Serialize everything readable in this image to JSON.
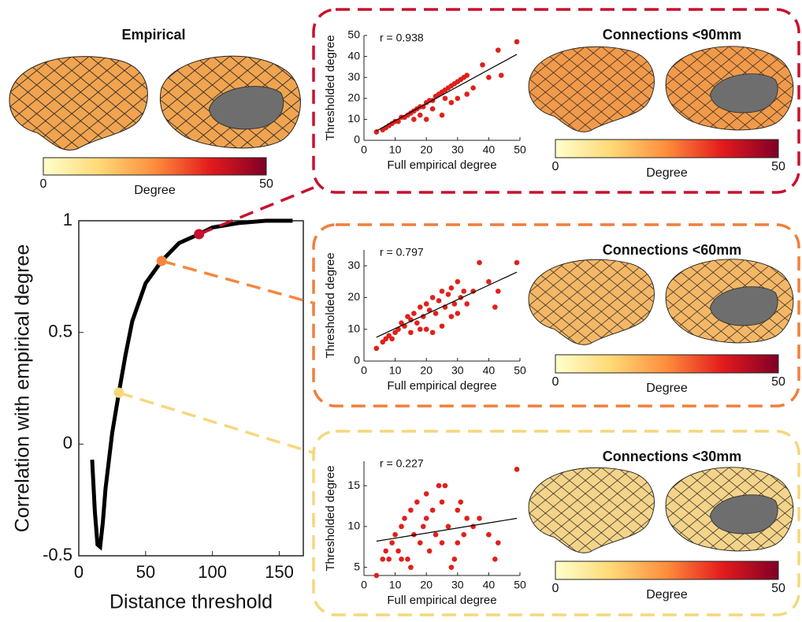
{
  "empirical": {
    "title": "Empirical",
    "colorbar": {
      "label": "Degree",
      "lim": [
        0,
        50
      ],
      "ticks": [
        0,
        50
      ]
    }
  },
  "chart_data": [
    {
      "type": "line",
      "x_label": "Distance threshold",
      "y_label": "Correlation with empirical degree",
      "xlim": [
        0,
        168
      ],
      "xticks": [
        0,
        50,
        100,
        150
      ],
      "ylim": [
        -0.5,
        1
      ],
      "yticks": [
        -0.5,
        0,
        0.5,
        1
      ],
      "series": [
        {
          "color": "#000000",
          "x": [
            10,
            12,
            14,
            16,
            18,
            20,
            25,
            30,
            35,
            40,
            50,
            62,
            75,
            90,
            100,
            120,
            140,
            160
          ],
          "values": [
            -0.07,
            -0.3,
            -0.45,
            -0.46,
            -0.35,
            -0.2,
            0.05,
            0.23,
            0.4,
            0.55,
            0.72,
            0.82,
            0.9,
            0.94,
            0.97,
            0.99,
            1.0,
            1.0
          ]
        }
      ],
      "highlights": {
        "x": [
          90,
          62,
          30
        ],
        "values": [
          0.94,
          0.82,
          0.23
        ],
        "colors": [
          "#c8102e",
          "#f4873f",
          "#f6d77c"
        ]
      }
    },
    {
      "type": "scatter",
      "title": "Connections <90mm",
      "annotation": "r = 0.938",
      "x_label": "Full empirical degree",
      "y_label": "Thresholded degree",
      "xlim": [
        0,
        50
      ],
      "xticks": [
        0,
        10,
        20,
        30,
        40,
        50
      ],
      "ylim": [
        0,
        50
      ],
      "yticks": [
        0,
        10,
        20,
        30,
        40,
        50
      ],
      "points": {
        "color": "#e0201b",
        "x": [
          4,
          6,
          7,
          8,
          9,
          10,
          11,
          12,
          13,
          14,
          15,
          16,
          17,
          18,
          19,
          20,
          21,
          22,
          23,
          24,
          25,
          26,
          27,
          28,
          29,
          30,
          31,
          32,
          33,
          22,
          25,
          28,
          30,
          33,
          35,
          38,
          40,
          43,
          44,
          49,
          20,
          26,
          16,
          18
        ],
        "values": [
          4,
          5,
          6,
          7,
          8,
          9,
          9,
          11,
          11,
          12,
          13,
          14,
          15,
          16,
          16,
          18,
          19,
          19,
          21,
          22,
          23,
          24,
          25,
          26,
          27,
          28,
          29,
          30,
          31,
          15,
          12,
          18,
          20,
          22,
          25,
          36,
          30,
          43,
          31,
          47,
          10,
          20,
          10,
          12
        ]
      },
      "fit": {
        "color": "#000000",
        "x": [
          4,
          49
        ],
        "values": [
          4.5,
          41
        ]
      },
      "colorbar": {
        "label": "Degree",
        "lim": [
          0,
          50
        ],
        "ticks": [
          0,
          50
        ]
      }
    },
    {
      "type": "scatter",
      "title": "Connections <60mm",
      "annotation": "r = 0.797",
      "x_label": "Full empirical degree",
      "y_label": "Thresholded degree",
      "xlim": [
        0,
        50
      ],
      "xticks": [
        0,
        10,
        20,
        30,
        40,
        50
      ],
      "ylim": [
        0,
        35
      ],
      "yticks": [
        0,
        10,
        20,
        30
      ],
      "points": {
        "color": "#e0201b",
        "x": [
          4,
          6,
          7,
          8,
          9,
          10,
          11,
          12,
          13,
          14,
          15,
          16,
          17,
          18,
          19,
          20,
          21,
          22,
          23,
          24,
          25,
          26,
          27,
          28,
          29,
          30,
          31,
          32,
          33,
          35,
          37,
          40,
          42,
          43,
          49,
          20,
          25,
          22,
          18,
          15,
          30,
          28
        ],
        "values": [
          4,
          6,
          7,
          8,
          7,
          9,
          10,
          12,
          11,
          14,
          13,
          15,
          12,
          17,
          14,
          18,
          16,
          20,
          15,
          19,
          22,
          17,
          21,
          23,
          18,
          25,
          20,
          22,
          18,
          22,
          31,
          25,
          17,
          22,
          31,
          10,
          11,
          9,
          10,
          9,
          15,
          14
        ]
      },
      "fit": {
        "color": "#000000",
        "x": [
          4,
          49
        ],
        "values": [
          7.5,
          28
        ]
      },
      "colorbar": {
        "label": "Degree",
        "lim": [
          0,
          50
        ],
        "ticks": [
          0,
          50
        ]
      }
    },
    {
      "type": "scatter",
      "title": "Connections <30mm",
      "annotation": "r = 0.227",
      "x_label": "Full empirical degree",
      "y_label": "Thresholded degree",
      "xlim": [
        0,
        50
      ],
      "xticks": [
        0,
        10,
        20,
        30,
        40,
        50
      ],
      "ylim": [
        4,
        18
      ],
      "yticks": [
        5,
        10,
        15
      ],
      "points": {
        "color": "#e0201b",
        "x": [
          4,
          6,
          7,
          8,
          9,
          10,
          11,
          12,
          13,
          14,
          15,
          16,
          17,
          18,
          19,
          20,
          21,
          22,
          23,
          24,
          25,
          26,
          27,
          28,
          29,
          30,
          31,
          32,
          33,
          35,
          37,
          40,
          42,
          43,
          49,
          20,
          15,
          25,
          30,
          12
        ],
        "values": [
          4,
          6,
          7,
          6,
          8,
          9,
          7,
          10,
          11,
          6,
          12,
          9,
          13,
          8,
          10,
          11,
          7,
          12,
          9,
          15,
          8,
          15,
          10,
          5,
          6,
          12,
          13,
          9,
          11,
          10,
          11,
          9,
          6,
          8,
          17,
          14,
          5,
          13,
          8,
          6
        ]
      },
      "fit": {
        "color": "#000000",
        "x": [
          4,
          49
        ],
        "values": [
          8.2,
          11
        ]
      },
      "colorbar": {
        "label": "Degree",
        "lim": [
          0,
          50
        ],
        "ticks": [
          0,
          50
        ]
      }
    }
  ]
}
